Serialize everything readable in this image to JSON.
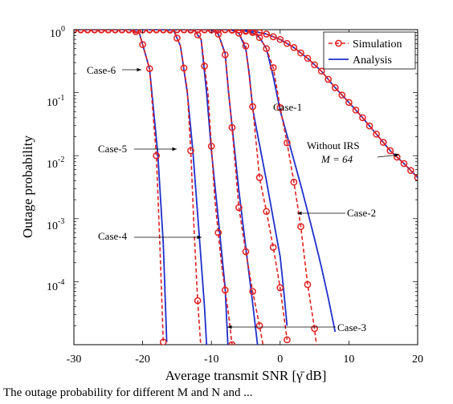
{
  "chart_data": {
    "type": "line",
    "xlabel": "Average transmit SNR [γ̄ dB]",
    "ylabel": "Outage probability",
    "xlim": [
      -30,
      20
    ],
    "ylim": [
      1e-05,
      1
    ],
    "yscale": "log",
    "x_ticks": [
      "-30",
      "-20",
      "-10",
      "0",
      "10",
      "20"
    ],
    "y_ticks": [
      {
        "base": "10",
        "exp": "0"
      },
      {
        "base": "10",
        "exp": "-1"
      },
      {
        "base": "10",
        "exp": "-2"
      },
      {
        "base": "10",
        "exp": "-3"
      },
      {
        "base": "10",
        "exp": "-4"
      }
    ],
    "grid": false,
    "legend_position": "top-right",
    "legend": [
      {
        "label": "Simulation",
        "style": "dashed-circle",
        "color": "#e02020"
      },
      {
        "label": "Analysis",
        "style": "solid",
        "color": "#1f2fc9"
      }
    ],
    "series": [
      {
        "case": "Case-1",
        "simulation": [
          [
            -30,
            1
          ],
          [
            -20,
            1
          ],
          [
            -10,
            1
          ],
          [
            -8,
            0.999
          ],
          [
            -6,
            0.99
          ],
          [
            -4,
            0.9
          ],
          [
            -3,
            0.75
          ],
          [
            -2,
            0.5
          ],
          [
            -1,
            0.25
          ],
          [
            0,
            0.058
          ],
          [
            1,
            0.016
          ],
          [
            2,
            0.0038
          ],
          [
            3,
            0.00075
          ],
          [
            4,
            9e-05
          ],
          [
            5,
            1.8e-05
          ],
          [
            6,
            2e-06
          ]
        ],
        "analysis": [
          [
            -30,
            1
          ],
          [
            -20,
            1
          ],
          [
            -10,
            1
          ],
          [
            -8,
            0.999
          ],
          [
            -6,
            0.99
          ],
          [
            -4,
            0.9
          ],
          [
            -3,
            0.75
          ],
          [
            -2,
            0.5
          ],
          [
            -1,
            0.18
          ],
          [
            0,
            0.052
          ],
          [
            1,
            0.021
          ],
          [
            2,
            0.0085
          ],
          [
            3,
            0.0034
          ],
          [
            4,
            0.0013
          ],
          [
            5,
            0.00048
          ],
          [
            6,
            0.00017
          ],
          [
            7,
            5.5e-05
          ],
          [
            8,
            1.6e-05
          ]
        ]
      },
      {
        "case": "Case-2",
        "simulation": [
          [
            -30,
            1
          ],
          [
            -10,
            1
          ],
          [
            -8,
            0.999
          ],
          [
            -7,
            0.98
          ],
          [
            -6,
            0.88
          ],
          [
            -5,
            0.55
          ],
          [
            -4,
            0.06
          ],
          [
            -3,
            0.0045
          ],
          [
            -2,
            0.0013
          ],
          [
            -1,
            0.00035
          ],
          [
            0,
            8e-05
          ],
          [
            1,
            1.2e-05
          ]
        ],
        "analysis": [
          [
            -30,
            1
          ],
          [
            -10,
            1
          ],
          [
            -8,
            0.999
          ],
          [
            -7,
            0.98
          ],
          [
            -6,
            0.88
          ],
          [
            -5,
            0.5
          ],
          [
            -4.5,
            0.2
          ],
          [
            -4,
            0.055
          ],
          [
            -3,
            0.015
          ],
          [
            -2,
            0.004
          ],
          [
            -1,
            0.001
          ],
          [
            0,
            0.00025
          ],
          [
            0.5,
            7.5e-05
          ],
          [
            1,
            2e-05
          ]
        ]
      },
      {
        "case": "Case-3",
        "simulation": [
          [
            -30,
            1
          ],
          [
            -12,
            1
          ],
          [
            -10,
            0.99
          ],
          [
            -9,
            0.85
          ],
          [
            -8,
            0.4
          ],
          [
            -7,
            0.028
          ],
          [
            -6,
            0.0015
          ],
          [
            -5,
            0.0003
          ],
          [
            -4,
            7e-05
          ],
          [
            -3,
            2e-05
          ],
          [
            -2,
            5e-06
          ]
        ],
        "analysis": [
          [
            -30,
            1
          ],
          [
            -12,
            1
          ],
          [
            -10,
            0.99
          ],
          [
            -9,
            0.85
          ],
          [
            -8,
            0.42
          ],
          [
            -7.5,
            0.1
          ],
          [
            -7,
            0.03
          ],
          [
            -6,
            0.0028
          ],
          [
            -5,
            0.00035
          ],
          [
            -4,
            4.5e-05
          ],
          [
            -3.3,
            1e-05
          ]
        ]
      },
      {
        "case": "Case-4",
        "simulation": [
          [
            -30,
            1
          ],
          [
            -14,
            1
          ],
          [
            -12.5,
            0.98
          ],
          [
            -11.5,
            0.7
          ],
          [
            -10.5,
            0.1
          ],
          [
            -9.5,
            0.002
          ],
          [
            -8.5,
            0.00018
          ],
          [
            -7.5,
            3e-05
          ],
          [
            -7,
            1e-05
          ]
        ],
        "analysis": [
          [
            -30,
            1
          ],
          [
            -14,
            1
          ],
          [
            -12.5,
            0.98
          ],
          [
            -11.5,
            0.7
          ],
          [
            -10.7,
            0.1
          ],
          [
            -10,
            0.012
          ],
          [
            -9,
            0.001
          ],
          [
            -8,
            8e-05
          ],
          [
            -7.6,
            1e-05
          ]
        ]
      },
      {
        "case": "Case-5",
        "simulation": [
          [
            -30,
            1
          ],
          [
            -17,
            1
          ],
          [
            -15.5,
            0.98
          ],
          [
            -14.5,
            0.55
          ],
          [
            -13.5,
            0.11
          ],
          [
            -13,
            0.012
          ],
          [
            -12.5,
            0.0006
          ],
          [
            -12,
            5e-05
          ],
          [
            -11.5,
            8e-06
          ]
        ],
        "analysis": [
          [
            -30,
            1
          ],
          [
            -17,
            1
          ],
          [
            -15.5,
            0.98
          ],
          [
            -14.5,
            0.55
          ],
          [
            -13.5,
            0.1
          ],
          [
            -12.7,
            0.012
          ],
          [
            -11.8,
            0.0006
          ],
          [
            -11,
            4e-05
          ],
          [
            -10.7,
            1e-05
          ]
        ]
      },
      {
        "case": "Case-6",
        "simulation": [
          [
            -30,
            1
          ],
          [
            -22,
            1
          ],
          [
            -20.5,
            0.9
          ],
          [
            -19,
            0.24
          ],
          [
            -18,
            0.01
          ],
          [
            -17.5,
            0.0004
          ],
          [
            -17,
            1.1e-05
          ]
        ],
        "analysis": [
          [
            -30,
            1
          ],
          [
            -22,
            1
          ],
          [
            -20.5,
            0.9
          ],
          [
            -19,
            0.24
          ],
          [
            -17.8,
            0.011
          ],
          [
            -17,
            0.0004
          ],
          [
            -16.5,
            1.1e-05
          ]
        ]
      },
      {
        "case": "Without IRS M = 64",
        "simulation": [
          [
            -30,
            1
          ],
          [
            -8,
            1
          ],
          [
            -6,
            0.99
          ],
          [
            -4,
            0.95
          ],
          [
            -2,
            0.85
          ],
          [
            0,
            0.7
          ],
          [
            2,
            0.52
          ],
          [
            4,
            0.35
          ],
          [
            6,
            0.22
          ],
          [
            8,
            0.12
          ],
          [
            10,
            0.07
          ],
          [
            12,
            0.04
          ],
          [
            14,
            0.022
          ],
          [
            16,
            0.012
          ],
          [
            18,
            0.0075
          ],
          [
            20,
            0.0045
          ]
        ],
        "analysis": [
          [
            -30,
            1
          ],
          [
            -8,
            1
          ],
          [
            -6,
            0.99
          ],
          [
            -4,
            0.95
          ],
          [
            -2,
            0.85
          ],
          [
            0,
            0.7
          ],
          [
            2,
            0.52
          ],
          [
            4,
            0.35
          ],
          [
            6,
            0.22
          ],
          [
            8,
            0.12
          ],
          [
            10,
            0.07
          ],
          [
            12,
            0.04
          ],
          [
            14,
            0.022
          ],
          [
            16,
            0.012
          ],
          [
            18,
            0.0075
          ],
          [
            20,
            0.0045
          ]
        ]
      }
    ],
    "annotations": {
      "case1": "Case-1",
      "case2": "Case-2",
      "case3": "Case-3",
      "case4": "Case-4",
      "case5": "Case-5",
      "case6": "Case-6",
      "without_irs_line1": "Without IRS",
      "without_irs_line2": "M = 64"
    }
  },
  "colors": {
    "simulation": "#e02020",
    "analysis": "#1f2fc9"
  },
  "caption": "The outage probability for different M and N and ..."
}
